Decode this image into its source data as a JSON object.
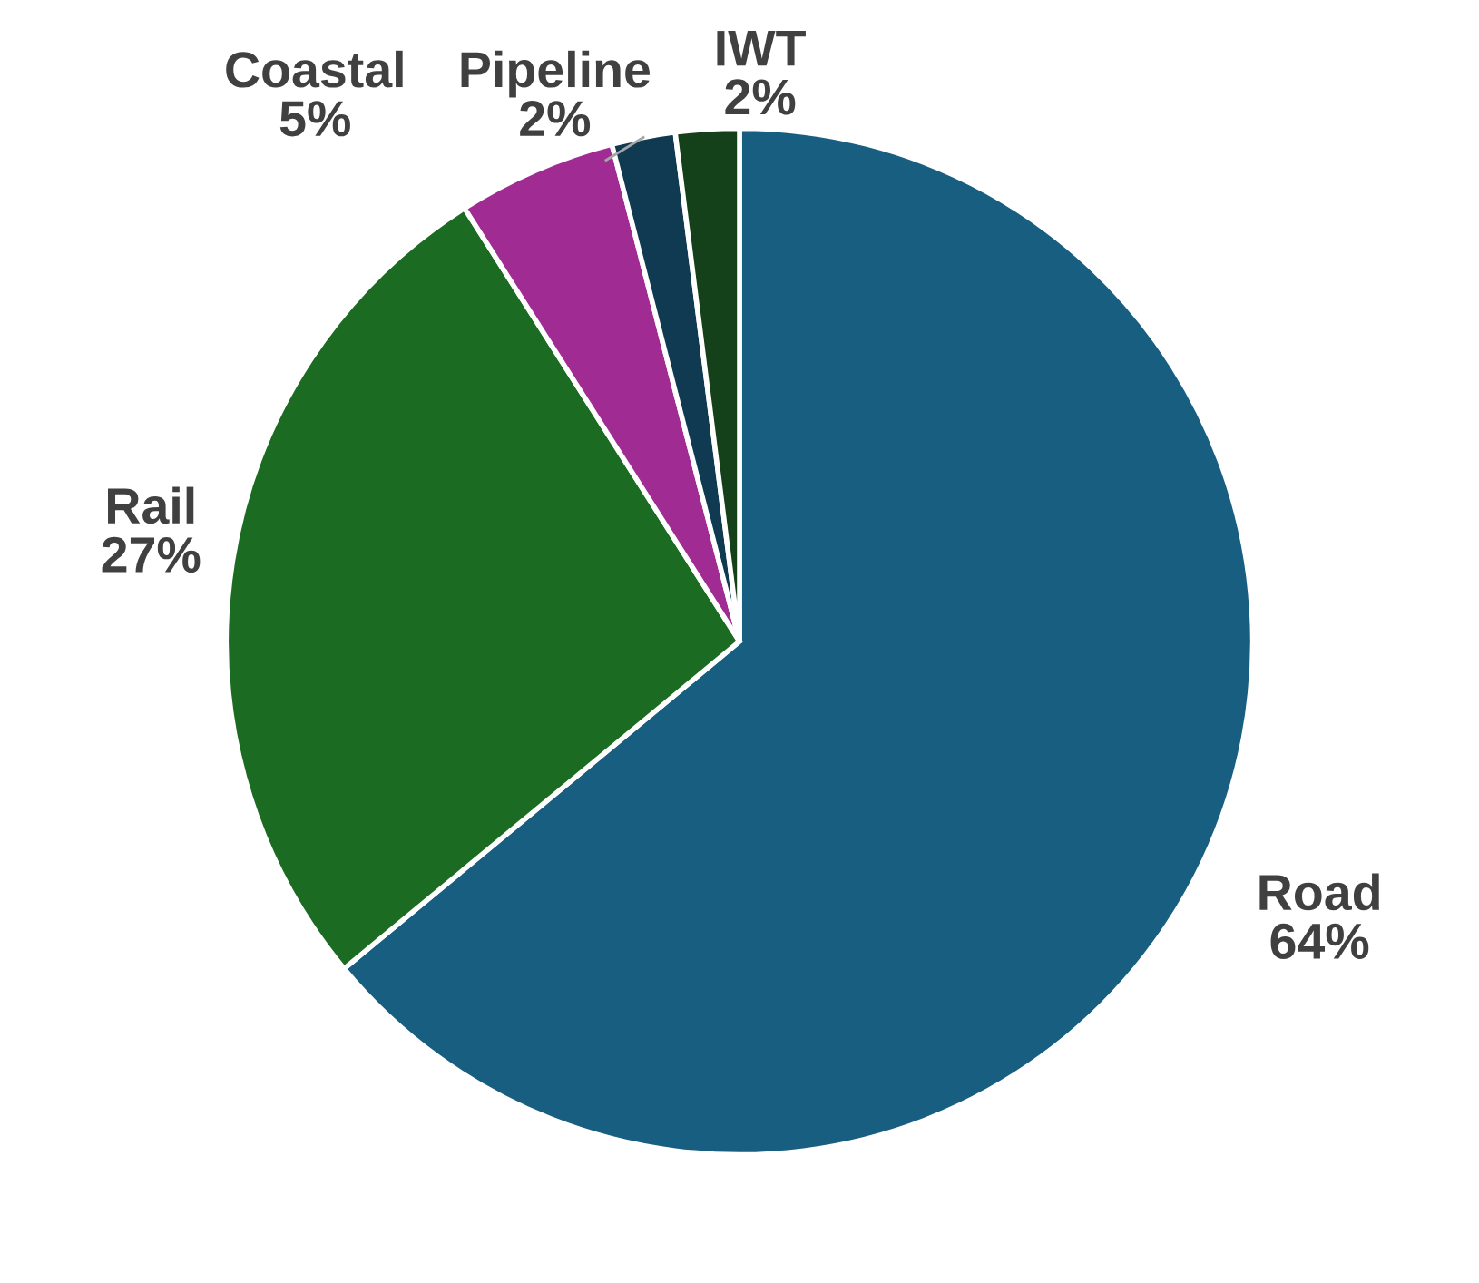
{
  "chart_data": {
    "type": "pie",
    "categories": [
      "Road",
      "Rail",
      "Coastal",
      "Pipeline",
      "IWT"
    ],
    "values": [
      64,
      27,
      5,
      2,
      2
    ],
    "colors": [
      "#175e80",
      "#1c6b23",
      "#a02c93",
      "#0f3a52",
      "#14401a"
    ],
    "value_labels": [
      "64%",
      "27%",
      "5%",
      "2%",
      "2%"
    ]
  }
}
